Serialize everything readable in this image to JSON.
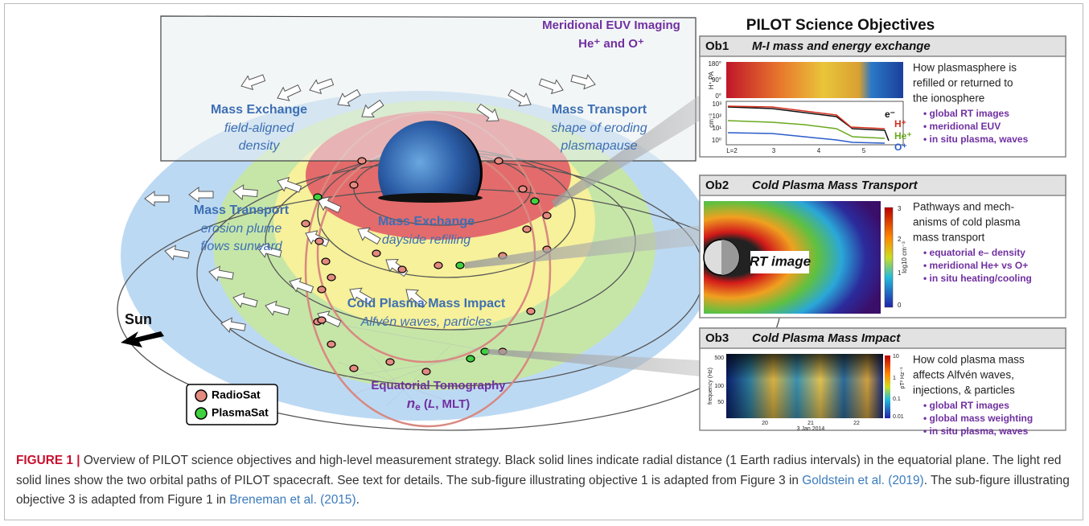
{
  "figure": {
    "meridional": {
      "title": "Meridional EUV Imaging",
      "subtitle": "He⁺ and O⁺"
    },
    "regions": [
      {
        "title": "Mass Exchange",
        "lines": [
          "field-aligned",
          "density"
        ]
      },
      {
        "title": "Mass Transport",
        "lines": [
          "shape of eroding",
          "plasmapause"
        ]
      },
      {
        "title": "Mass Transport",
        "lines": [
          "erosion plume",
          "flows sunward"
        ]
      },
      {
        "title": "Mass Exchange",
        "lines": [
          "dayside refilling"
        ]
      },
      {
        "title": "Cold Plasma Mass Impact",
        "lines": [
          "Alfvén waves, particles"
        ]
      }
    ],
    "sun": "Sun",
    "tomography": {
      "title": "Equatorial Tomography",
      "parts": [
        "n",
        "e",
        " (",
        "L",
        ", MLT)"
      ]
    },
    "legend": [
      {
        "label": "RadioSat",
        "color": "#e48a80"
      },
      {
        "label": "PlasmaSat",
        "color": "#3fd13f"
      }
    ]
  },
  "objectives": {
    "title": "PILOT Science Objectives",
    "panels": [
      {
        "id": "Ob1",
        "title": "M-I mass and energy exchange",
        "description": [
          "How plasmasphere is",
          "refilled or returned to",
          "the ionosphere"
        ],
        "bullets": [
          "• global RT images",
          "• meridional EUV",
          "• in situ plasma, waves"
        ],
        "plot_labels": [
          "H⁺ PA",
          "180°",
          "90°",
          "0°",
          "cm⁻³",
          "10³",
          "10²",
          "10¹",
          "10⁰",
          "L=2",
          "3",
          "4",
          "5"
        ],
        "species": [
          {
            "label": "e⁻",
            "color": "#111111"
          },
          {
            "label": "H⁺",
            "color": "#d32f1e"
          },
          {
            "label": "He⁺",
            "color": "#6aa81e"
          },
          {
            "label": "O⁺",
            "color": "#2a5cc9"
          }
        ]
      },
      {
        "id": "Ob2",
        "title": "Cold Plasma Mass Transport",
        "description": [
          "Pathways and mech-",
          "anisms of cold plasma",
          "mass transport"
        ],
        "bullets": [
          "• equatorial e– density",
          "• meridional He+ vs O+",
          "• in situ heating/cooling"
        ],
        "plot_labels": [
          "RT image",
          "3",
          "2",
          "1",
          "0",
          "log10 cm⁻³"
        ]
      },
      {
        "id": "Ob3",
        "title": "Cold Plasma Mass Impact",
        "description": [
          "How cold plasma mass",
          "affects Alfvén waves,",
          "injections, & particles"
        ],
        "bullets": [
          "• global RT images",
          "• global mass weighting",
          "• in situ plasma, waves"
        ],
        "plot_labels": [
          "frequency (Hz)",
          "500",
          "100",
          "50",
          "20",
          "21",
          "22",
          "3 Jan 2014",
          "10",
          "1",
          "0.1",
          "0.01",
          "pT² Hz⁻¹"
        ]
      }
    ]
  },
  "caption": {
    "label": "FIGURE 1 |",
    "segments": [
      {
        "text": " Overview of PILOT science objectives and high-level measurement strategy. Black solid lines indicate radial distance (1 Earth radius intervals) in the equatorial plane. The light red solid lines show the two orbital paths of PILOT spacecraft. See text for details. The sub-figure illustrating objective 1 is adapted from Figure 3 in "
      },
      {
        "text": "Goldstein et al. (2019)",
        "ref": true
      },
      {
        "text": ". The sub-figure illustrating objective 3 is adapted from Figure 1 in "
      },
      {
        "text": "Breneman et al. (2015)",
        "ref": true
      },
      {
        "text": "."
      }
    ]
  }
}
